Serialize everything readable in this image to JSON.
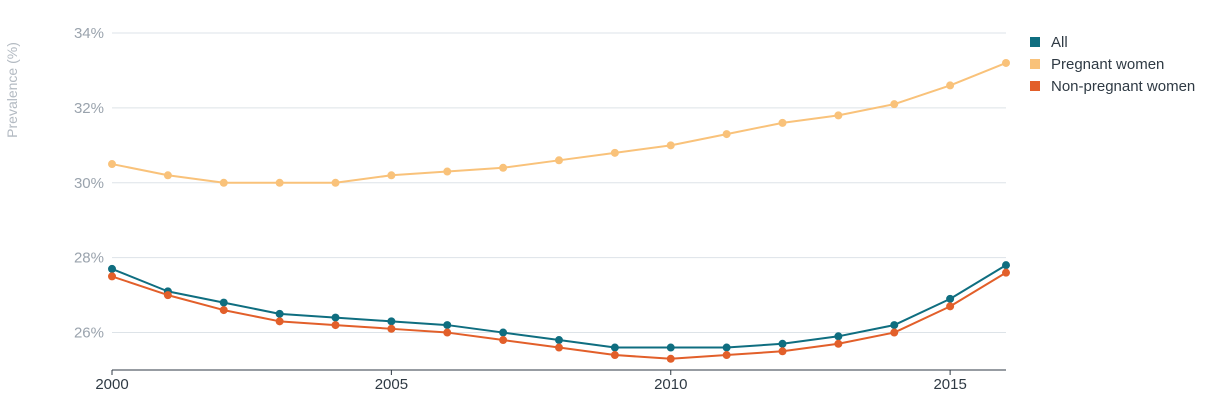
{
  "chart_data": {
    "type": "line",
    "title": "",
    "xlabel": "",
    "ylabel": "Prevalence (%)",
    "x": [
      2000,
      2001,
      2002,
      2003,
      2004,
      2005,
      2006,
      2007,
      2008,
      2009,
      2010,
      2011,
      2012,
      2013,
      2014,
      2015,
      2016
    ],
    "xlim": [
      2000,
      2016
    ],
    "ylim": [
      25,
      34
    ],
    "x_ticks": [
      2000,
      2005,
      2010,
      2015
    ],
    "x_tick_labels": [
      "2000",
      "2005",
      "2010",
      "2015"
    ],
    "y_ticks": [
      26,
      28,
      30,
      32,
      34
    ],
    "y_tick_labels": [
      "26%",
      "28%",
      "30%",
      "32%",
      "34%"
    ],
    "grid": true,
    "legend_position": "top-right",
    "series": [
      {
        "name": "All",
        "color": "#0f6e80",
        "values": [
          27.7,
          27.1,
          26.8,
          26.5,
          26.4,
          26.3,
          26.2,
          26.0,
          25.8,
          25.6,
          25.6,
          25.6,
          25.7,
          25.9,
          26.2,
          26.9,
          27.8
        ]
      },
      {
        "name": "Pregnant women",
        "color": "#f9c27a",
        "values": [
          30.5,
          30.2,
          30.0,
          30.0,
          30.0,
          30.2,
          30.3,
          30.4,
          30.6,
          30.8,
          31.0,
          31.3,
          31.6,
          31.8,
          32.1,
          32.6,
          33.2
        ]
      },
      {
        "name": "Non-pregnant women",
        "color": "#e25f2a",
        "values": [
          27.5,
          27.0,
          26.6,
          26.3,
          26.2,
          26.1,
          26.0,
          25.8,
          25.6,
          25.4,
          25.3,
          25.4,
          25.5,
          25.7,
          26.0,
          26.7,
          27.6
        ]
      }
    ]
  }
}
